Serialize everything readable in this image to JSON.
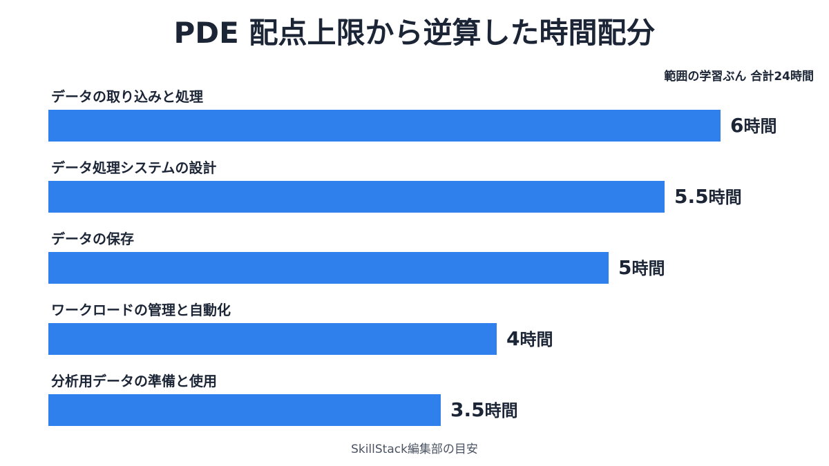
{
  "title": "PDE 配点上限から逆算した時間配分",
  "scope_note": "範囲の学習ぶん 合計24時間",
  "source_note": "SkillStack編集部の目安",
  "colors": {
    "bar": "#2f80ed",
    "text": "#1c2536"
  },
  "chart_data": {
    "type": "bar",
    "orientation": "horizontal",
    "title": "PDE 配点上限から逆算した時間配分",
    "subtitle": "範囲の学習ぶん 合計24時間",
    "categories": [
      "データの取り込みと処理",
      "データ処理システムの設計",
      "データの保存",
      "ワークロードの管理と自動化",
      "分析用データの準備と使用"
    ],
    "values": [
      6,
      5.5,
      5,
      4,
      3.5
    ],
    "value_labels": [
      "6",
      "5.5",
      "5",
      "4",
      "3.5"
    ],
    "unit": "時間",
    "xlim": [
      0,
      6
    ],
    "grid": false,
    "legend": "none"
  }
}
